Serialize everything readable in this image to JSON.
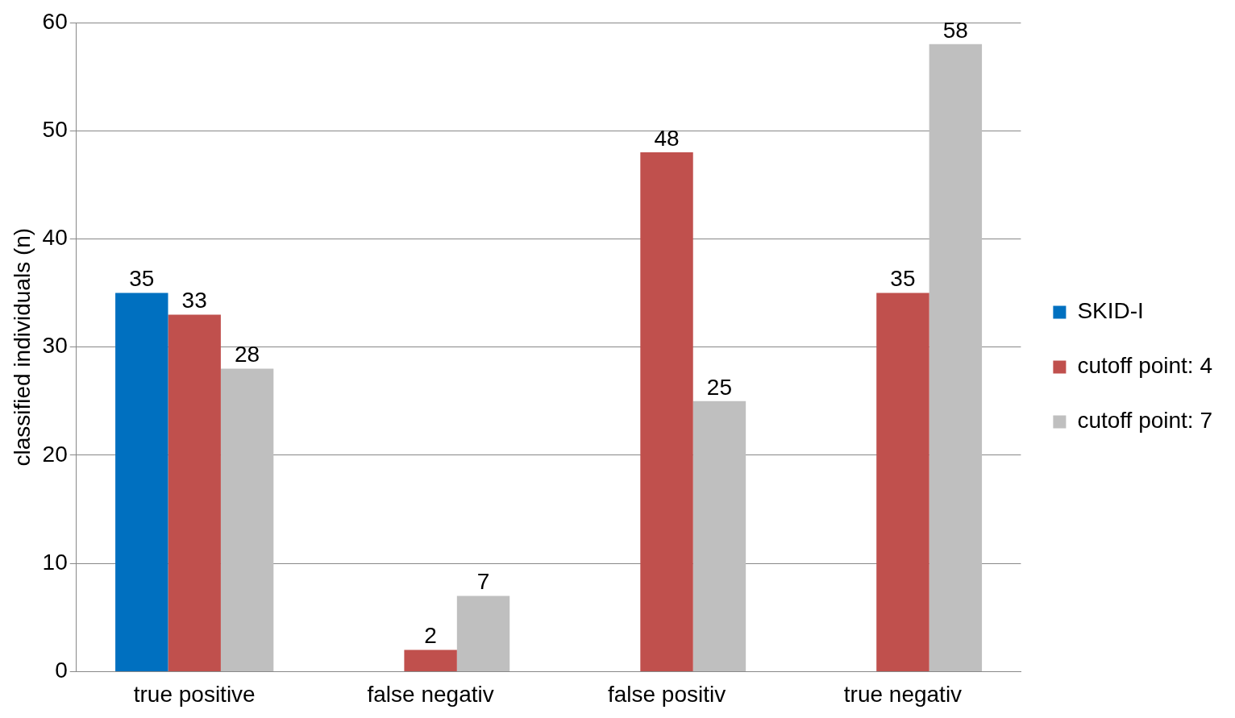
{
  "chart_data": {
    "type": "bar",
    "ylabel": "classified individuals (n)",
    "categories": [
      "true positive",
      "false negativ",
      "false positiv",
      "true negativ"
    ],
    "series": [
      {
        "name": "SKID-I",
        "color": "#0070c0",
        "values": [
          35,
          null,
          null,
          null
        ]
      },
      {
        "name": "cutoff point: 4",
        "color": "#c0504d",
        "values": [
          33,
          2,
          48,
          35
        ]
      },
      {
        "name": "cutoff point: 7",
        "color": "#bfbfbf",
        "values": [
          28,
          7,
          25,
          58
        ]
      }
    ],
    "ylim": [
      0,
      60
    ],
    "yticks": [
      0,
      10,
      20,
      30,
      40,
      50,
      60
    ],
    "grid": "y",
    "legend": "right",
    "data_labels": true
  }
}
